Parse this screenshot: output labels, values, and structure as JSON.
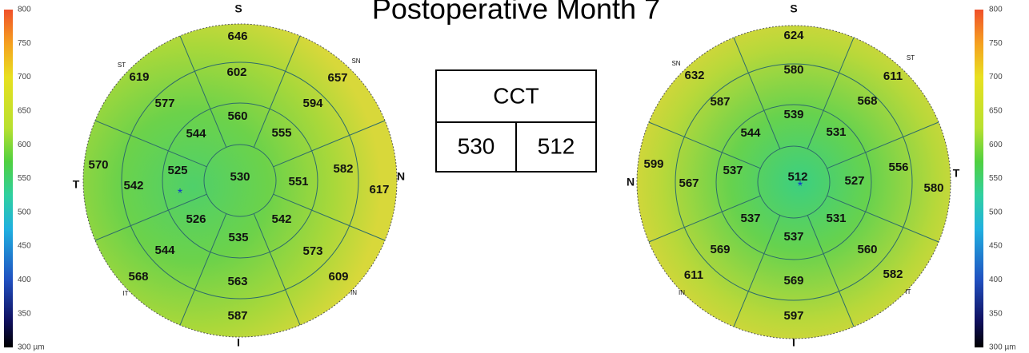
{
  "title": "Postoperative Month 7",
  "scale": [
    800,
    750,
    700,
    650,
    600,
    550,
    500,
    450,
    400,
    350,
    "300 µm"
  ],
  "maps": [
    {
      "labels": [
        "S",
        "SN",
        "N",
        "IN",
        "I",
        "IT",
        "T",
        "ST"
      ],
      "center": 530,
      "inner": [
        560,
        555,
        551,
        542,
        535,
        526,
        525,
        544
      ],
      "middle": [
        602,
        594,
        582,
        573,
        563,
        544,
        542,
        577
      ],
      "outer": [
        646,
        657,
        617,
        609,
        587,
        568,
        570,
        619
      ]
    },
    {
      "labels": [
        "S",
        "ST",
        "T",
        "IT",
        "I",
        "IN",
        "N",
        "SN"
      ],
      "center": 512,
      "inner": [
        539,
        531,
        527,
        531,
        537,
        537,
        537,
        544
      ],
      "middle": [
        580,
        568,
        556,
        560,
        569,
        569,
        567,
        587
      ],
      "outer": [
        624,
        611,
        580,
        582,
        597,
        611,
        599,
        632
      ]
    }
  ],
  "cct": {
    "header": "CCT",
    "values": [
      530,
      512
    ]
  }
}
